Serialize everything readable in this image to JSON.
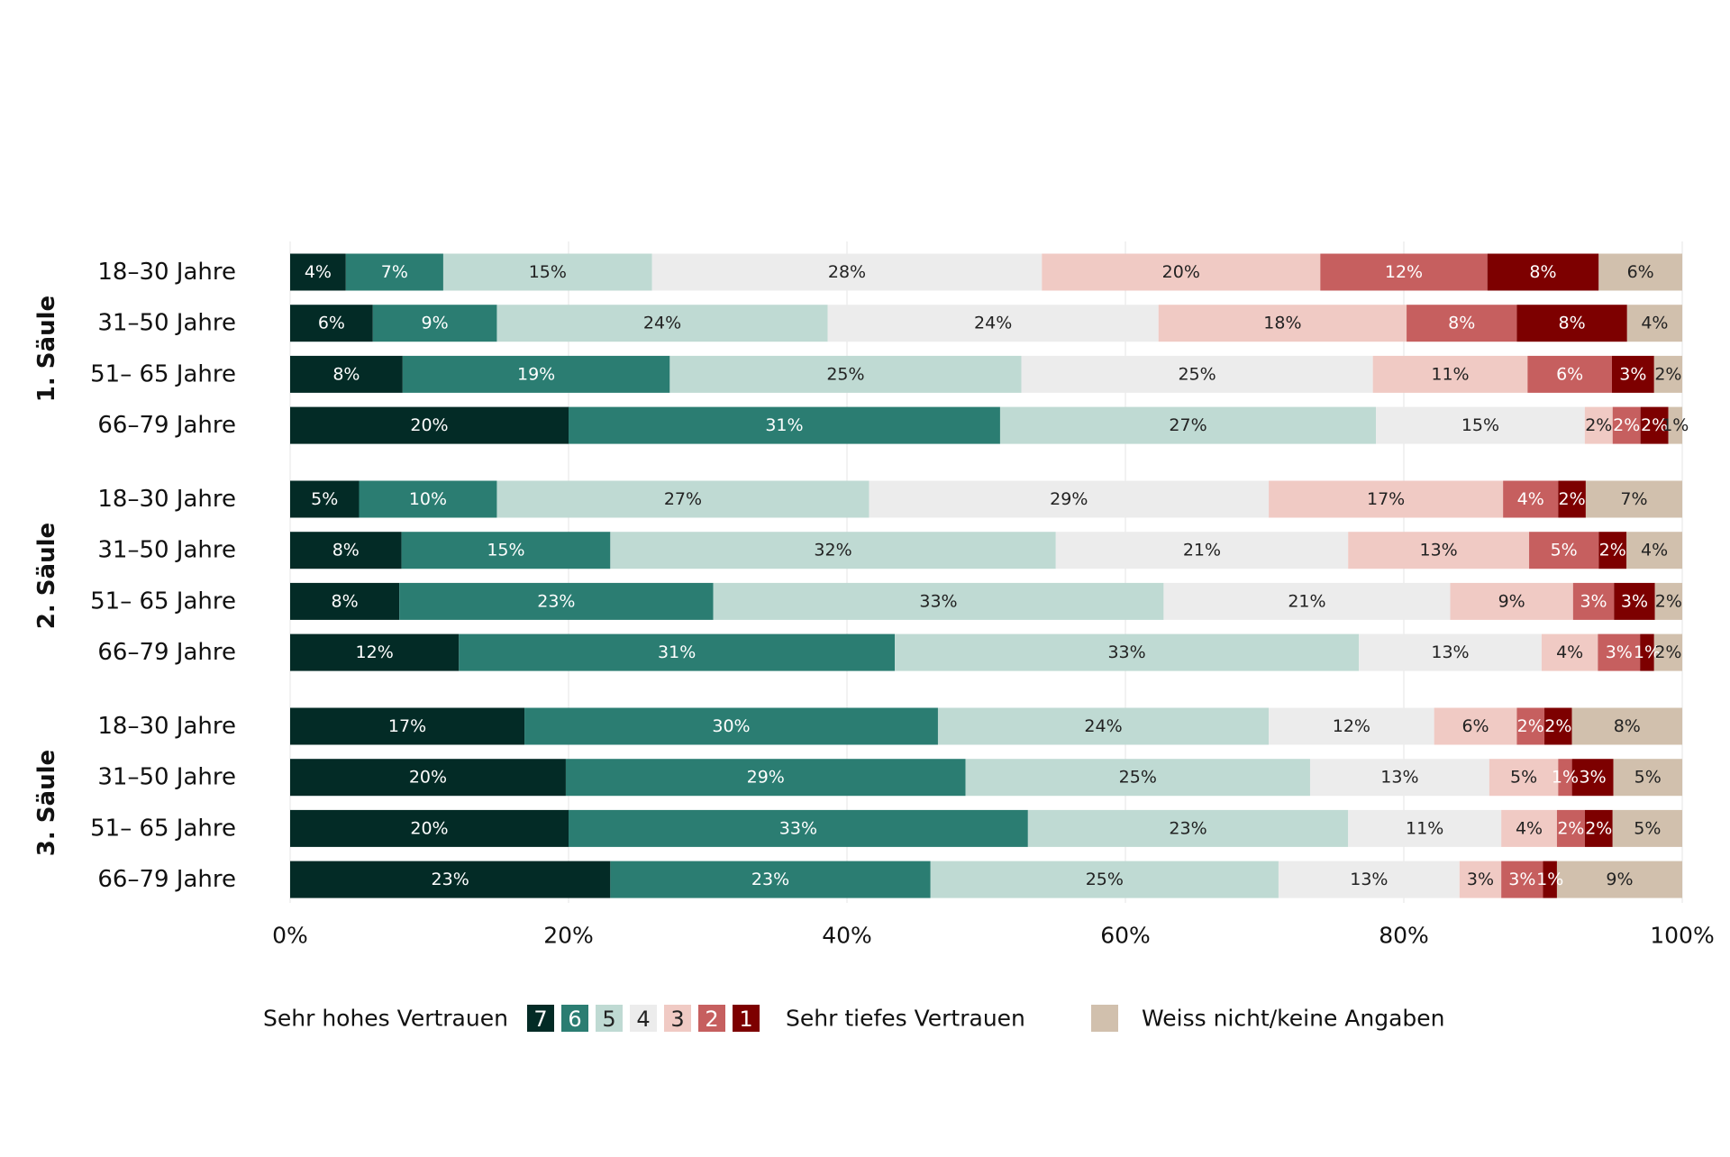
{
  "chart_data": {
    "type": "bar",
    "orientation": "horizontal",
    "stacked": true,
    "percent": true,
    "xlim": [
      0,
      100
    ],
    "x_ticks": [
      "0%",
      "20%",
      "40%",
      "60%",
      "80%",
      "100%"
    ],
    "x_tick_values": [
      0,
      20,
      40,
      60,
      80,
      100
    ],
    "grid": true,
    "legend_position": "bottom",
    "legend": {
      "left_text": "Sehr hohes Vertrauen",
      "right_text": "Sehr tiefes Vertrauen",
      "na_text": "Weiss nicht/keine Angaben",
      "items": [
        "7",
        "6",
        "5",
        "4",
        "3",
        "2",
        "1"
      ]
    },
    "series": [
      {
        "name": "7",
        "color": "#032b26",
        "label_color": "#ffffff"
      },
      {
        "name": "6",
        "color": "#2b7d72",
        "label_color": "#ffffff"
      },
      {
        "name": "5",
        "color": "#bfdad3",
        "label_color": "#222222"
      },
      {
        "name": "4",
        "color": "#ececec",
        "label_color": "#222222"
      },
      {
        "name": "3",
        "color": "#f0cac4",
        "label_color": "#222222"
      },
      {
        "name": "2",
        "color": "#c65f5f",
        "label_color": "#ffffff"
      },
      {
        "name": "1",
        "color": "#7d0000",
        "label_color": "#ffffff"
      },
      {
        "name": "Weiss nicht/keine Angaben",
        "color": "#d1c0ad",
        "label_color": "#222222"
      }
    ],
    "groups": [
      {
        "name": "1. Säule",
        "rows": [
          {
            "label": "18–30 Jahre",
            "values": [
              4,
              7,
              15,
              28,
              20,
              12,
              8,
              6
            ],
            "labels": [
              "4%",
              "7%",
              "15%",
              "28%",
              "20%",
              "12%",
              "8%",
              "6%"
            ]
          },
          {
            "label": "31–50 Jahre",
            "values": [
              6,
              9,
              24,
              24,
              18,
              8,
              8,
              4
            ],
            "labels": [
              "6%",
              "9%",
              "24%",
              "24%",
              "18%",
              "8%",
              "8%",
              "4%"
            ]
          },
          {
            "label": "51– 65 Jahre",
            "values": [
              8,
              19,
              25,
              25,
              11,
              6,
              3,
              2
            ],
            "labels": [
              "8%",
              "19%",
              "25%",
              "25%",
              "11%",
              "6%",
              "3%",
              "2%"
            ]
          },
          {
            "label": "66–79 Jahre",
            "values": [
              20,
              31,
              27,
              15,
              2,
              2,
              2,
              1
            ],
            "labels": [
              "20%",
              "31%",
              "27%",
              "15%",
              "2%",
              "2%",
              "2%",
              "1%"
            ]
          }
        ]
      },
      {
        "name": "2. Säule",
        "rows": [
          {
            "label": "18–30 Jahre",
            "values": [
              5,
              10,
              27,
              29,
              17,
              4,
              2,
              7
            ],
            "labels": [
              "5%",
              "10%",
              "27%",
              "29%",
              "17%",
              "4%",
              "2%",
              "7%"
            ]
          },
          {
            "label": "31–50 Jahre",
            "values": [
              8,
              15,
              32,
              21,
              13,
              5,
              2,
              4
            ],
            "labels": [
              "8%",
              "15%",
              "32%",
              "21%",
              "13%",
              "5%",
              "2%",
              "4%"
            ]
          },
          {
            "label": "51– 65 Jahre",
            "values": [
              8,
              23,
              33,
              21,
              9,
              3,
              3,
              2
            ],
            "labels": [
              "8%",
              "23%",
              "33%",
              "21%",
              "9%",
              "3%",
              "3%",
              "2%"
            ]
          },
          {
            "label": "66–79 Jahre",
            "values": [
              12,
              31,
              33,
              13,
              4,
              3,
              1,
              2
            ],
            "labels": [
              "12%",
              "31%",
              "33%",
              "13%",
              "4%",
              "3%",
              "1%",
              "2%"
            ]
          }
        ]
      },
      {
        "name": "3. Säule",
        "rows": [
          {
            "label": "18–30 Jahre",
            "values": [
              17,
              30,
              24,
              12,
              6,
              2,
              2,
              8
            ],
            "labels": [
              "17%",
              "30%",
              "24%",
              "12%",
              "6%",
              "2%",
              "2%",
              "8%"
            ]
          },
          {
            "label": "31–50 Jahre",
            "values": [
              20,
              29,
              25,
              13,
              5,
              1,
              3,
              5
            ],
            "labels": [
              "20%",
              "29%",
              "25%",
              "13%",
              "5%",
              "1%",
              "3%",
              "5%"
            ]
          },
          {
            "label": "51– 65 Jahre",
            "values": [
              20,
              33,
              23,
              11,
              4,
              2,
              2,
              5
            ],
            "labels": [
              "20%",
              "33%",
              "23%",
              "11%",
              "4%",
              "2%",
              "2%",
              "5%"
            ]
          },
          {
            "label": "66–79 Jahre",
            "values": [
              23,
              23,
              25,
              13,
              3,
              3,
              1,
              9
            ],
            "labels": [
              "23%",
              "23%",
              "25%",
              "13%",
              "3%",
              "3%",
              "1%",
              "9%"
            ]
          }
        ]
      }
    ]
  }
}
